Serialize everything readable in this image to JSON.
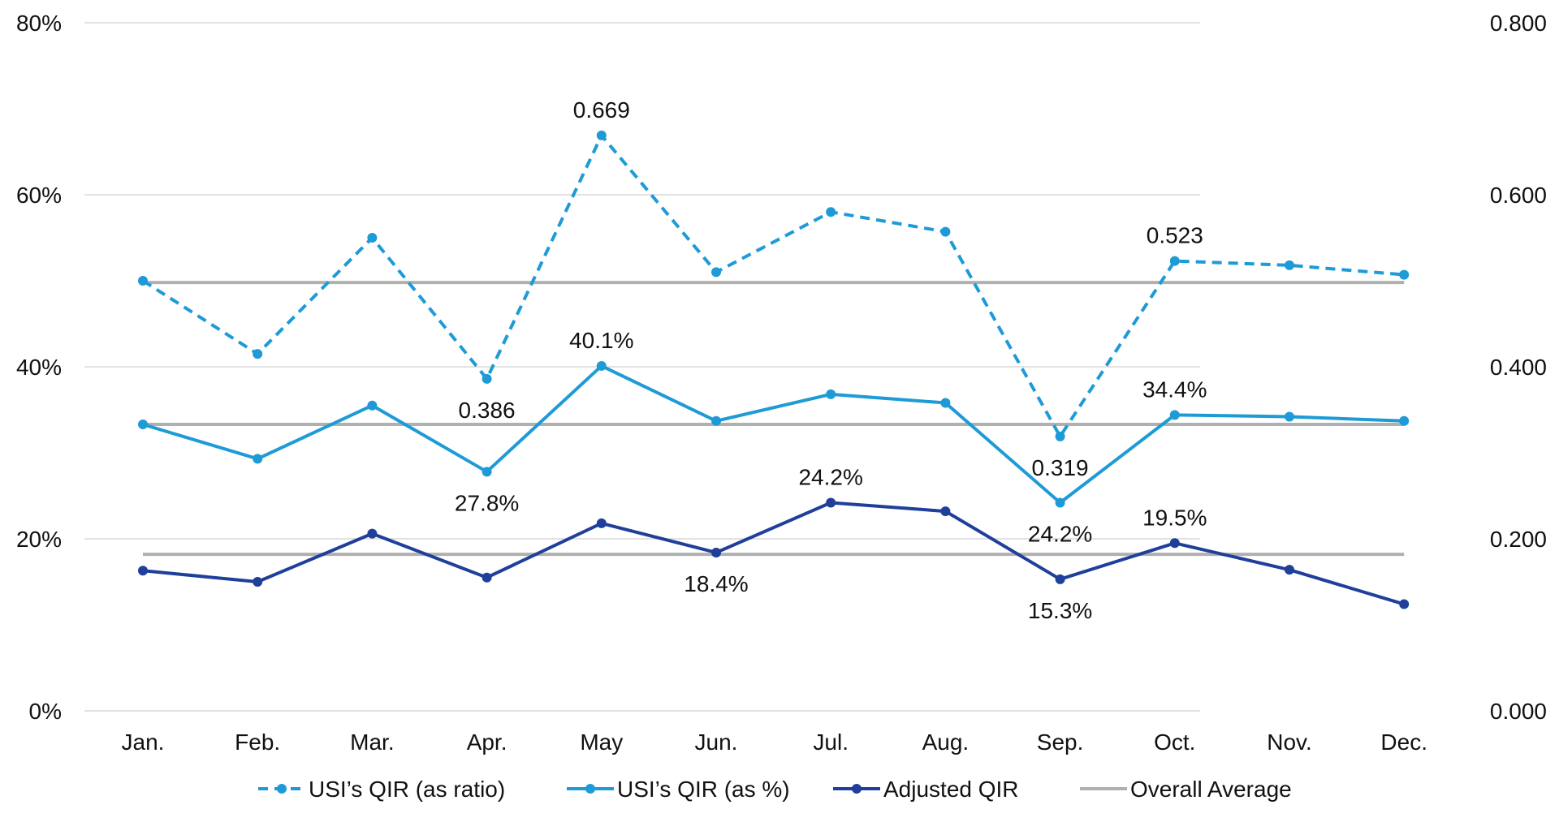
{
  "chart_data": {
    "type": "line",
    "categories": [
      "Jan.",
      "Feb.",
      "Mar.",
      "Apr.",
      "May",
      "Jun.",
      "Jul.",
      "Aug.",
      "Sep.",
      "Oct.",
      "Nov.",
      "Dec."
    ],
    "y_left": {
      "range": [
        0,
        80
      ],
      "ticks": [
        "0%",
        "20%",
        "40%",
        "60%",
        "80%"
      ]
    },
    "y_right": {
      "range": [
        0,
        0.8
      ],
      "ticks": [
        "0.000",
        "0.200",
        "0.400",
        "0.600",
        "0.800"
      ]
    },
    "grid": true,
    "legend_position": "bottom",
    "series": [
      {
        "name": "USI’s QIR (as ratio)",
        "axis": "right",
        "style": "dashed",
        "color": "#1e9bd7",
        "values": [
          0.5,
          0.415,
          0.55,
          0.386,
          0.669,
          0.51,
          0.58,
          0.557,
          0.319,
          0.523,
          0.518,
          0.507
        ],
        "labels": [
          "",
          "",
          "",
          "0.386",
          "0.669",
          "",
          "",
          "",
          "0.319",
          "0.523",
          "",
          ""
        ],
        "label_pos": [
          "",
          "",
          "",
          "below",
          "above",
          "",
          "",
          "",
          "below",
          "above",
          "",
          ""
        ]
      },
      {
        "name": "USI’s QIR (as %)",
        "axis": "left",
        "style": "solid",
        "color": "#1e9bd7",
        "values": [
          33.3,
          29.3,
          35.5,
          27.8,
          40.1,
          33.7,
          36.8,
          35.8,
          24.2,
          34.4,
          34.2,
          33.7
        ],
        "labels": [
          "",
          "",
          "",
          "27.8%",
          "40.1%",
          "",
          "",
          "",
          "24.2%",
          "34.4%",
          "",
          ""
        ],
        "label_pos": [
          "",
          "",
          "",
          "below",
          "above",
          "",
          "",
          "",
          "below",
          "above",
          "",
          ""
        ]
      },
      {
        "name": "Adjusted QIR",
        "axis": "left",
        "style": "solid",
        "color": "#1f3f9a",
        "values": [
          16.3,
          15.0,
          20.6,
          15.5,
          21.8,
          18.4,
          24.2,
          23.2,
          15.3,
          19.5,
          16.4,
          12.4
        ],
        "labels": [
          "",
          "",
          "",
          "",
          "",
          "18.4%",
          "24.2%",
          "",
          "15.3%",
          "19.5%",
          "",
          ""
        ],
        "label_pos": [
          "",
          "",
          "",
          "",
          "",
          "below",
          "above",
          "",
          "below",
          "above",
          "",
          ""
        ]
      }
    ],
    "average_lines": {
      "name": "Overall Average",
      "color": "#b0b0b0",
      "values_left": [
        49.8,
        33.3,
        18.2
      ]
    },
    "legend": [
      {
        "name": "USI’s QIR (as ratio)",
        "style": "dashed",
        "color": "#1e9bd7"
      },
      {
        "name": "USI’s QIR (as %)",
        "style": "solid",
        "color": "#1e9bd7"
      },
      {
        "name": "Adjusted QIR",
        "style": "solid",
        "color": "#1f3f9a"
      },
      {
        "name": "Overall Average",
        "style": "plain",
        "color": "#b0b0b0"
      }
    ]
  }
}
